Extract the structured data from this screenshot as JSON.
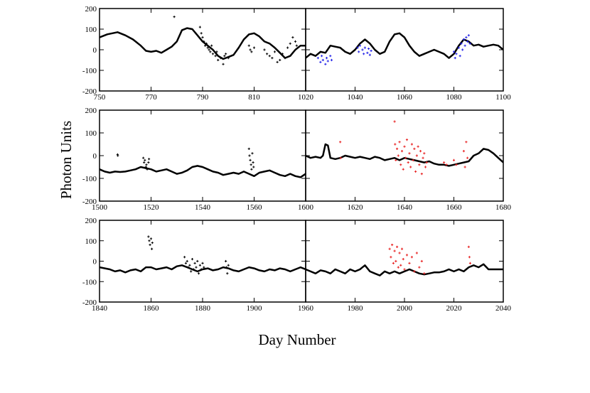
{
  "ylabel": "Photon Units",
  "xlabel": "Day Number",
  "chart_data": [
    {
      "type": "scatter",
      "xlim": [
        750,
        830
      ],
      "xticks": [
        750,
        770,
        790,
        810
      ],
      "ylim": [
        -200,
        200
      ],
      "yticks": [
        -200,
        -100,
        0,
        100,
        200
      ],
      "line": {
        "color": "#000000",
        "x": [
          750,
          753,
          757,
          760,
          763,
          766,
          768,
          770,
          772,
          774,
          776,
          778,
          780,
          782,
          784,
          786,
          788,
          790,
          792,
          794,
          796,
          798,
          800,
          802,
          804,
          806,
          808,
          810,
          812,
          814,
          816,
          818,
          820,
          822,
          824,
          826,
          828,
          830
        ],
        "values": [
          60,
          75,
          85,
          70,
          50,
          20,
          -5,
          -10,
          -5,
          -15,
          0,
          15,
          40,
          95,
          105,
          100,
          70,
          40,
          20,
          0,
          -30,
          -45,
          -35,
          -25,
          10,
          50,
          75,
          80,
          65,
          40,
          30,
          10,
          -15,
          -40,
          -30,
          0,
          20,
          20
        ]
      },
      "points": {
        "color": "#000000",
        "x": [
          779,
          789,
          789.5,
          790,
          790.5,
          791,
          791.5,
          792,
          792.5,
          793,
          793.5,
          794,
          795,
          795.5,
          796,
          797,
          798,
          798.5,
          799,
          800,
          808,
          808.5,
          809,
          810,
          814,
          815,
          816,
          817,
          818,
          819,
          820,
          821,
          822,
          823,
          824,
          825,
          826,
          826.5
        ],
        "values": [
          160,
          110,
          80,
          60,
          40,
          20,
          30,
          10,
          0,
          -10,
          20,
          -20,
          -30,
          -10,
          -50,
          -40,
          -70,
          -30,
          -20,
          -40,
          20,
          0,
          -10,
          10,
          0,
          -20,
          -30,
          -40,
          -10,
          -60,
          -50,
          -20,
          -40,
          10,
          30,
          60,
          40,
          20
        ]
      }
    },
    {
      "type": "scatter",
      "xlim": [
        1020,
        1100
      ],
      "xticks": [
        1020,
        1040,
        1060,
        1080,
        1100
      ],
      "ylim": [
        -200,
        200
      ],
      "yticks": [
        -200,
        -100,
        0,
        100,
        200
      ],
      "line": {
        "color": "#000000",
        "x": [
          1020,
          1022,
          1024,
          1026,
          1028,
          1030,
          1032,
          1034,
          1036,
          1038,
          1040,
          1042,
          1044,
          1046,
          1048,
          1050,
          1052,
          1054,
          1056,
          1058,
          1060,
          1062,
          1064,
          1066,
          1068,
          1070,
          1072,
          1074,
          1076,
          1078,
          1080,
          1082,
          1084,
          1086,
          1088,
          1090,
          1092,
          1094,
          1096,
          1098,
          1100
        ],
        "values": [
          -40,
          -20,
          -30,
          -10,
          -15,
          20,
          15,
          10,
          -10,
          -20,
          0,
          30,
          50,
          30,
          0,
          -20,
          -10,
          40,
          75,
          80,
          60,
          20,
          -10,
          -30,
          -20,
          -10,
          0,
          -10,
          -20,
          -40,
          -20,
          20,
          50,
          40,
          20,
          25,
          15,
          20,
          25,
          20,
          0
        ]
      },
      "points": {
        "color": "#1f1fe8",
        "x": [
          1025,
          1026,
          1026.5,
          1027,
          1028,
          1028.5,
          1029,
          1030,
          1030.5,
          1041,
          1041.5,
          1042,
          1043,
          1043.5,
          1044,
          1045,
          1045.5,
          1046,
          1046.5,
          1080,
          1080.5,
          1081,
          1082,
          1082.5,
          1083,
          1083.5,
          1084,
          1084.5,
          1085,
          1085.5,
          1086,
          1086.5
        ],
        "values": [
          -40,
          -60,
          -30,
          -50,
          -70,
          -40,
          -55,
          -30,
          -50,
          10,
          -10,
          20,
          0,
          -20,
          10,
          -15,
          5,
          -25,
          -5,
          -10,
          -40,
          -20,
          10,
          -30,
          30,
          0,
          50,
          20,
          60,
          40,
          70,
          30
        ]
      }
    },
    {
      "type": "scatter",
      "xlim": [
        1500,
        1580
      ],
      "xticks": [
        1500,
        1520,
        1540,
        1560
      ],
      "ylim": [
        -200,
        200
      ],
      "yticks": [
        -200,
        -100,
        0,
        100,
        200
      ],
      "line": {
        "color": "#000000",
        "x": [
          1500,
          1502,
          1504,
          1506,
          1508,
          1510,
          1512,
          1514,
          1516,
          1518,
          1520,
          1522,
          1524,
          1526,
          1528,
          1530,
          1532,
          1534,
          1536,
          1538,
          1540,
          1542,
          1544,
          1546,
          1548,
          1550,
          1552,
          1554,
          1556,
          1558,
          1560,
          1562,
          1564,
          1566,
          1568,
          1570,
          1572,
          1574,
          1576,
          1578,
          1580
        ],
        "values": [
          -60,
          -70,
          -75,
          -70,
          -72,
          -70,
          -65,
          -60,
          -50,
          -55,
          -60,
          -70,
          -65,
          -60,
          -70,
          -80,
          -75,
          -65,
          -50,
          -45,
          -50,
          -60,
          -70,
          -75,
          -85,
          -80,
          -75,
          -80,
          -70,
          -80,
          -90,
          -75,
          -70,
          -65,
          -75,
          -85,
          -90,
          -80,
          -90,
          -95,
          -80
        ]
      },
      "points": {
        "color": "#000000",
        "x": [
          1507,
          1507.1,
          1517,
          1517.3,
          1517.6,
          1518,
          1518.2,
          1518.5,
          1519,
          1519.2,
          1558,
          1558.2,
          1558.5,
          1558.8,
          1559,
          1559.3,
          1559.6,
          1559.8
        ],
        "values": [
          5,
          0,
          -10,
          -30,
          -20,
          -50,
          -40,
          -60,
          -30,
          -15,
          30,
          0,
          -20,
          -40,
          -60,
          10,
          -30,
          -50
        ]
      }
    },
    {
      "type": "scatter",
      "xlim": [
        1600,
        1680
      ],
      "xticks": [
        1600,
        1620,
        1640,
        1660,
        1680
      ],
      "ylim": [
        -200,
        200
      ],
      "yticks": [
        -200,
        -100,
        0,
        100,
        200
      ],
      "line": {
        "color": "#000000",
        "x": [
          1600,
          1602,
          1604,
          1606,
          1607,
          1608,
          1609,
          1610,
          1612,
          1614,
          1616,
          1618,
          1620,
          1622,
          1624,
          1626,
          1628,
          1630,
          1632,
          1634,
          1636,
          1638,
          1640,
          1642,
          1644,
          1646,
          1648,
          1650,
          1652,
          1654,
          1656,
          1658,
          1660,
          1662,
          1664,
          1666,
          1668,
          1670,
          1672,
          1674,
          1676,
          1678,
          1680
        ],
        "values": [
          0,
          -10,
          -5,
          -10,
          0,
          50,
          45,
          -10,
          -15,
          -10,
          0,
          -5,
          -10,
          -5,
          -10,
          -15,
          -5,
          -10,
          -20,
          -15,
          -10,
          -20,
          -10,
          -15,
          -20,
          -25,
          -30,
          -25,
          -35,
          -40,
          -40,
          -45,
          -40,
          -35,
          -30,
          -25,
          0,
          10,
          30,
          25,
          10,
          -10,
          -30
        ]
      },
      "points": {
        "color": "#e81f1f",
        "x": [
          1614,
          1614.2,
          1636,
          1636.2,
          1636.5,
          1637,
          1637.5,
          1638,
          1638.5,
          1639,
          1639.5,
          1640,
          1640.5,
          1641,
          1641.5,
          1642,
          1642.5,
          1643,
          1643.5,
          1644,
          1644.5,
          1645,
          1645.5,
          1646,
          1646.5,
          1647,
          1647.5,
          1648,
          1648.5,
          1649,
          1656,
          1657,
          1660,
          1661,
          1664,
          1664.5,
          1665,
          1665.5
        ],
        "values": [
          60,
          -10,
          150,
          50,
          -20,
          30,
          0,
          60,
          -40,
          20,
          -60,
          40,
          -10,
          70,
          -30,
          10,
          -50,
          50,
          -20,
          30,
          -70,
          0,
          40,
          -40,
          20,
          -80,
          -10,
          10,
          -50,
          -30,
          -30,
          -40,
          -20,
          -40,
          20,
          -50,
          60,
          -10
        ]
      }
    },
    {
      "type": "scatter",
      "xlim": [
        1840,
        1920
      ],
      "xticks": [
        1840,
        1860,
        1880,
        1900
      ],
      "ylim": [
        -200,
        200
      ],
      "yticks": [
        -200,
        -100,
        0,
        100,
        200
      ],
      "line": {
        "color": "#000000",
        "x": [
          1840,
          1844,
          1846,
          1848,
          1850,
          1852,
          1854,
          1856,
          1858,
          1860,
          1862,
          1864,
          1866,
          1868,
          1870,
          1872,
          1874,
          1876,
          1878,
          1880,
          1882,
          1884,
          1886,
          1888,
          1890,
          1892,
          1894,
          1896,
          1898,
          1900,
          1902,
          1904,
          1906,
          1908,
          1910,
          1912,
          1914,
          1916,
          1918,
          1920
        ],
        "values": [
          -30,
          -40,
          -50,
          -45,
          -55,
          -45,
          -40,
          -50,
          -30,
          -30,
          -40,
          -35,
          -30,
          -40,
          -25,
          -20,
          -30,
          -40,
          -50,
          -40,
          -35,
          -45,
          -40,
          -30,
          -35,
          -45,
          -50,
          -40,
          -30,
          -35,
          -45,
          -50,
          -40,
          -45,
          -35,
          -40,
          -50,
          -40,
          -30,
          -40
        ]
      },
      "points": {
        "color": "#000000",
        "x": [
          1859,
          1859.3,
          1859.6,
          1860,
          1860.3,
          1860.5,
          1873,
          1873.5,
          1874,
          1874.5,
          1875,
          1875.5,
          1876,
          1876.5,
          1877,
          1877.5,
          1878,
          1878.5,
          1879,
          1879.5,
          1880,
          1880.5,
          1889,
          1889.3,
          1889.6,
          1890
        ],
        "values": [
          120,
          100,
          80,
          110,
          60,
          90,
          20,
          -10,
          0,
          -30,
          -20,
          -50,
          10,
          -40,
          -10,
          -30,
          0,
          -60,
          -20,
          -40,
          -10,
          -30,
          0,
          -30,
          -60,
          -20
        ]
      }
    },
    {
      "type": "scatter",
      "xlim": [
        1960,
        2040
      ],
      "xticks": [
        1960,
        1980,
        2000,
        2020,
        2040
      ],
      "ylim": [
        -200,
        200
      ],
      "yticks": [
        -200,
        -100,
        0,
        100,
        200
      ],
      "line": {
        "color": "#000000",
        "x": [
          1960,
          1962,
          1964,
          1966,
          1968,
          1970,
          1972,
          1974,
          1976,
          1978,
          1980,
          1982,
          1984,
          1986,
          1988,
          1990,
          1992,
          1994,
          1996,
          1998,
          2000,
          2002,
          2004,
          2006,
          2008,
          2010,
          2012,
          2014,
          2016,
          2018,
          2020,
          2022,
          2024,
          2026,
          2028,
          2030,
          2032,
          2034,
          2036,
          2038,
          2040
        ],
        "values": [
          -40,
          -50,
          -60,
          -45,
          -50,
          -60,
          -40,
          -50,
          -60,
          -40,
          -50,
          -40,
          -20,
          -50,
          -60,
          -70,
          -50,
          -60,
          -50,
          -60,
          -50,
          -40,
          -50,
          -60,
          -65,
          -60,
          -55,
          -55,
          -50,
          -40,
          -50,
          -40,
          -50,
          -30,
          -20,
          -30,
          -15,
          -40,
          -40,
          -40,
          -40
        ]
      },
      "points": {
        "color": "#e81f1f",
        "x": [
          1994,
          1994.5,
          1995,
          1995.5,
          1996,
          1996.5,
          1997,
          1997.5,
          1998,
          1998.5,
          1999,
          1999.5,
          2000,
          2001,
          2002,
          2003,
          2004,
          2005,
          2006,
          2007,
          2008,
          2026,
          2026.3,
          2026.6
        ],
        "values": [
          60,
          20,
          80,
          -10,
          50,
          0,
          70,
          -30,
          40,
          -20,
          60,
          10,
          -40,
          30,
          -10,
          20,
          -50,
          40,
          -30,
          0,
          -60,
          70,
          20,
          -10
        ]
      }
    }
  ]
}
